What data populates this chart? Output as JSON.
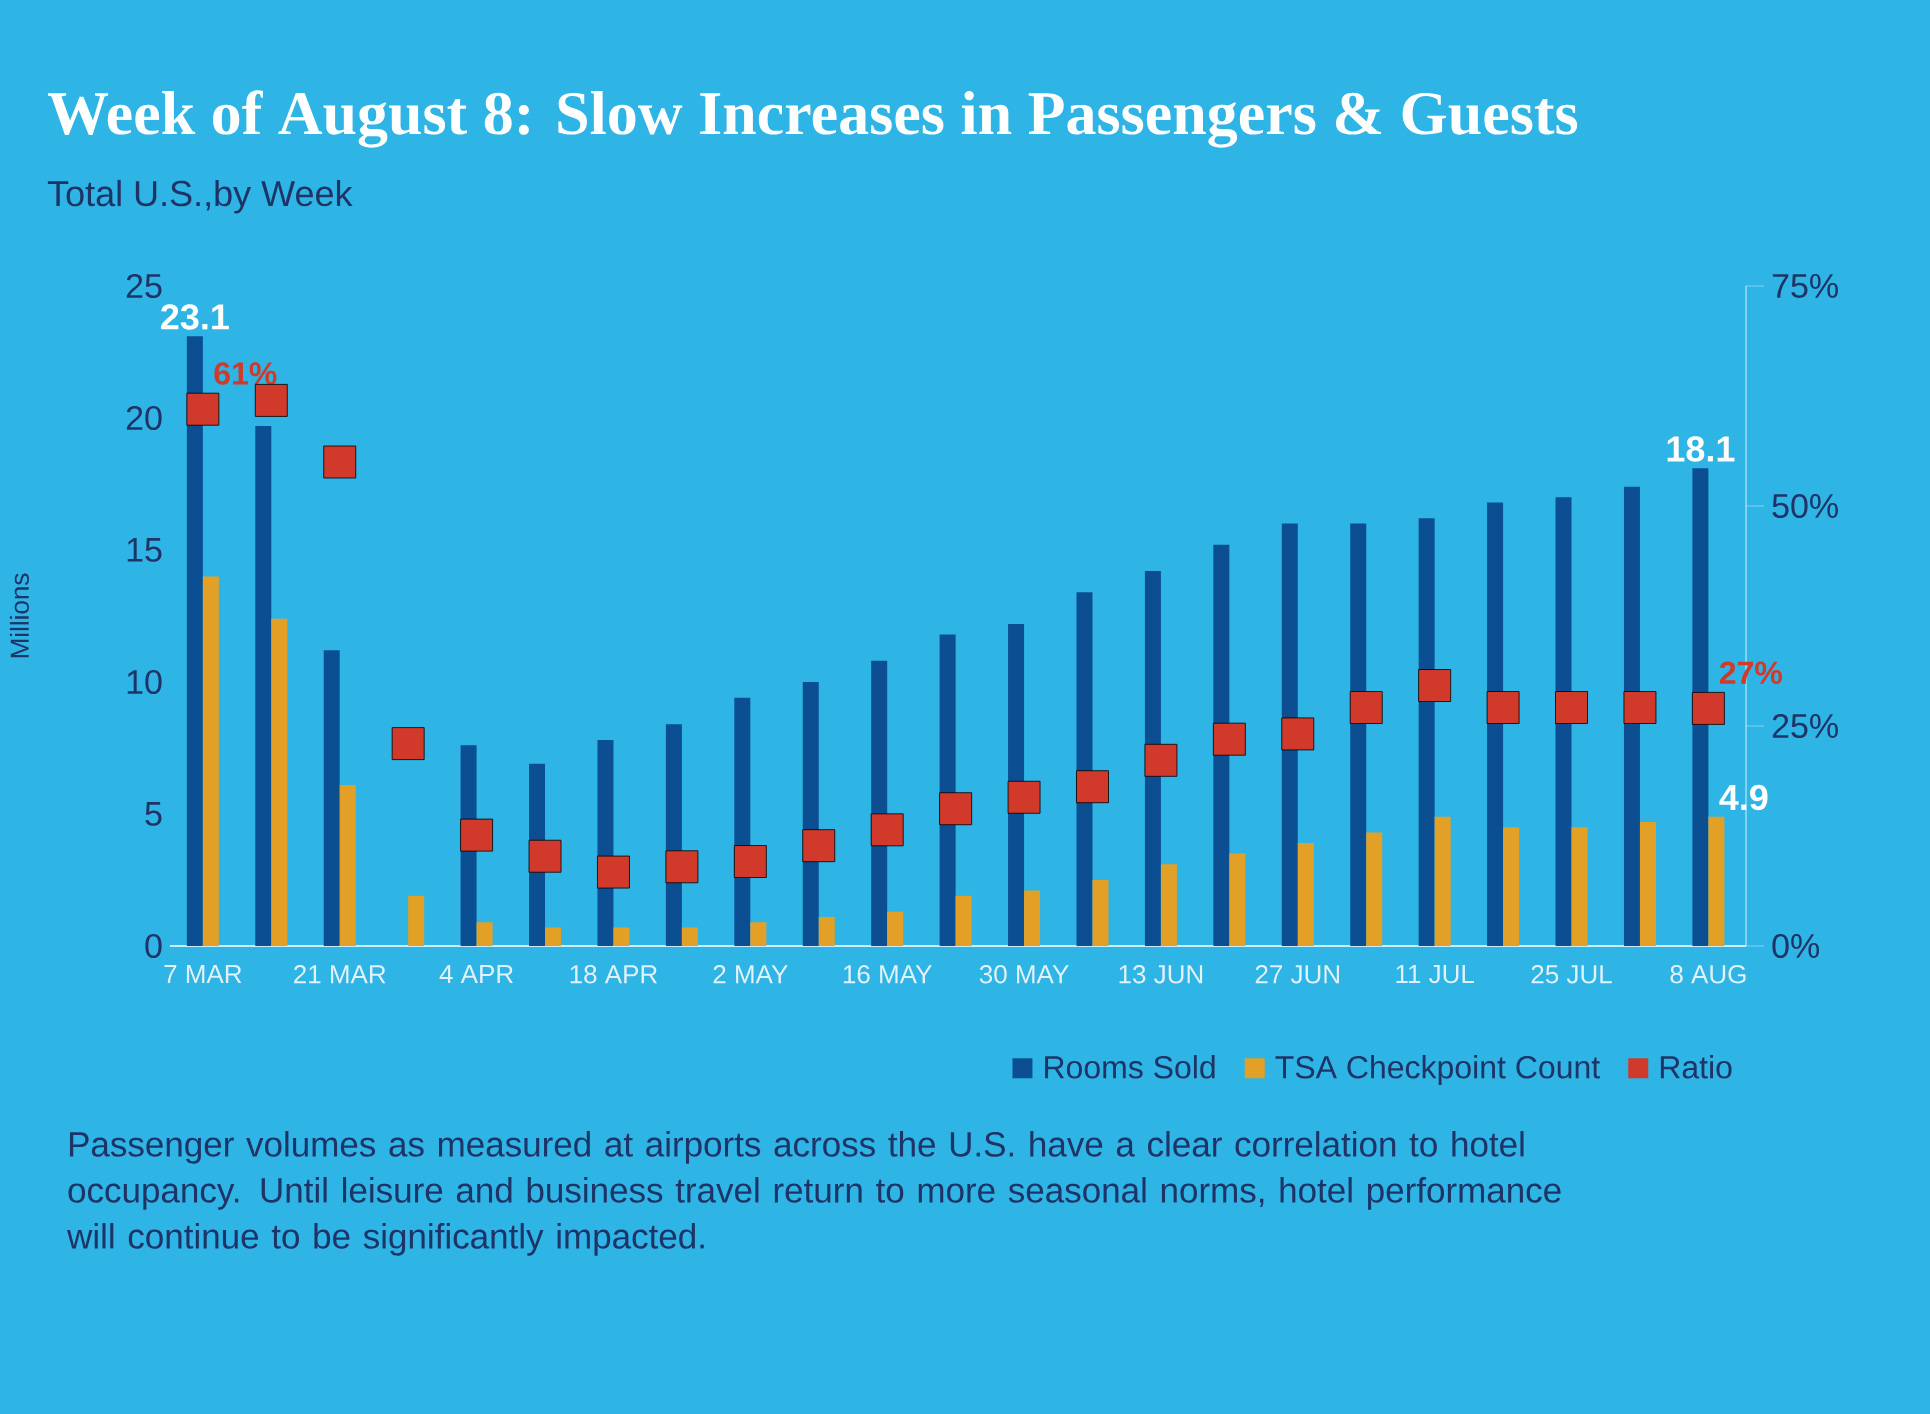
{
  "chart_data": {
    "type": "bar",
    "title": "Week of August 8: Slow Increases in Passengers & Guests",
    "subtitle": "Total U.S.,by Week",
    "ylabel": "Millions",
    "categories": [
      "7 MAR",
      null,
      "21 MAR",
      null,
      "4 APR",
      null,
      "18 APR",
      null,
      "2 MAY",
      null,
      "16 MAY",
      null,
      "30 MAY",
      null,
      "13 JUN",
      null,
      "27 JUN",
      null,
      "11 JUL",
      null,
      "25 JUL",
      null,
      "8 AUG"
    ],
    "series": [
      {
        "name": "Rooms Sold",
        "color": "#0b4f92",
        "values": [
          23.1,
          19.7,
          11.2,
          null,
          7.6,
          6.9,
          7.8,
          8.4,
          9.4,
          10.0,
          10.8,
          11.8,
          12.2,
          13.4,
          14.2,
          15.2,
          16.0,
          16.0,
          16.2,
          16.8,
          17.0,
          17.4,
          18.1
        ],
        "value_labels": [
          "23.1",
          null,
          null,
          null,
          null,
          null,
          null,
          null,
          null,
          null,
          null,
          null,
          null,
          null,
          null,
          null,
          null,
          null,
          null,
          null,
          null,
          null,
          "18.1"
        ]
      },
      {
        "name": "TSA Checkpoint Count",
        "color": "#e2a126",
        "values": [
          14.0,
          12.4,
          6.1,
          1.9,
          0.9,
          0.7,
          0.7,
          0.7,
          0.9,
          1.1,
          1.3,
          1.9,
          2.1,
          2.5,
          3.1,
          3.5,
          3.9,
          4.3,
          4.9,
          4.5,
          4.5,
          4.7,
          4.9
        ],
        "value_labels": [
          null,
          null,
          null,
          null,
          null,
          null,
          null,
          null,
          null,
          null,
          null,
          null,
          null,
          null,
          null,
          null,
          null,
          null,
          null,
          null,
          null,
          null,
          "4.9"
        ]
      },
      {
        "name": "Ratio",
        "type": "scatter",
        "axis": "y2",
        "marker": "square",
        "color": "#d13a2a",
        "values": [
          61,
          62,
          55,
          23,
          12.6,
          10.2,
          8.4,
          9.0,
          9.6,
          11.4,
          13.2,
          15.6,
          16.9,
          18.1,
          21.1,
          23.5,
          24.1,
          27.1,
          29.6,
          27.1,
          27.1,
          27.1,
          27
        ],
        "value_labels": [
          "61%",
          null,
          null,
          null,
          null,
          null,
          null,
          null,
          null,
          null,
          null,
          null,
          null,
          null,
          null,
          null,
          null,
          null,
          null,
          null,
          null,
          null,
          "27%"
        ]
      }
    ],
    "ylim": [
      0,
      25
    ],
    "yticks": [
      0,
      5,
      10,
      15,
      20,
      25
    ],
    "y2lim": [
      0,
      75
    ],
    "y2ticks": [
      {
        "value": 0,
        "label": "0%"
      },
      {
        "value": 25,
        "label": "25%"
      },
      {
        "value": 50,
        "label": "50%"
      },
      {
        "value": 75,
        "label": "75%"
      }
    ],
    "legend": "bottom right",
    "annotations": [
      "Passenger volumes as measured at airports across the U.S. have a clear correlation to hotel occupancy.  Until leisure and business travel return to more seasonal norms, hotel performance will continue to be significantly impacted."
    ]
  }
}
